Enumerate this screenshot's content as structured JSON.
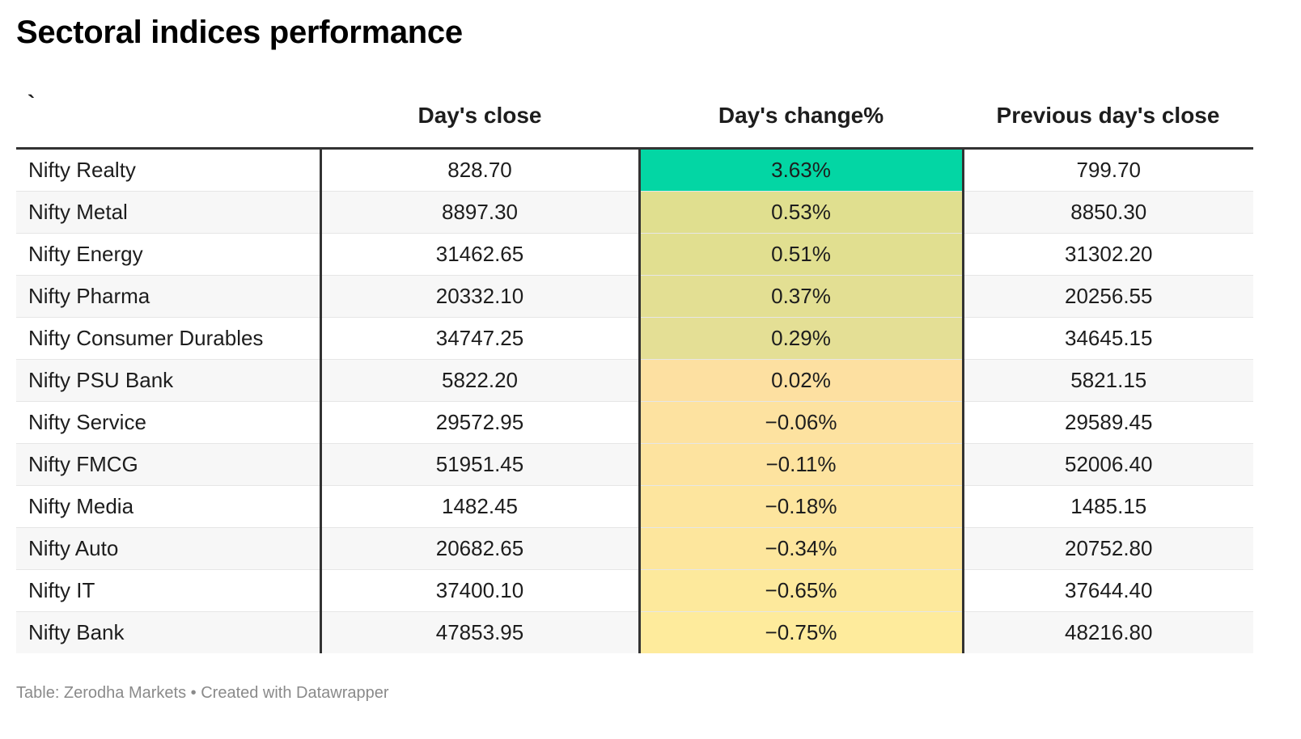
{
  "title": "Sectoral indices performance",
  "footer": "Table: Zerodha Markets • Created with Datawrapper",
  "chart_data": {
    "type": "table",
    "title": "Sectoral indices performance",
    "columns": [
      "`",
      "Day's close",
      "Day's change%",
      "Previous day's close"
    ],
    "rows": [
      {
        "name": "Nifty Realty",
        "close": "828.70",
        "change": "3.63%",
        "change_value": 3.63,
        "prev": "799.70",
        "color": "#03d6a4"
      },
      {
        "name": "Nifty Metal",
        "close": "8897.30",
        "change": "0.53%",
        "change_value": 0.53,
        "prev": "8850.30",
        "color": "#e0df8f"
      },
      {
        "name": "Nifty Energy",
        "close": "31462.65",
        "change": "0.51%",
        "change_value": 0.51,
        "prev": "31302.20",
        "color": "#e1df90"
      },
      {
        "name": "Nifty Pharma",
        "close": "20332.10",
        "change": "0.37%",
        "change_value": 0.37,
        "prev": "20256.55",
        "color": "#e3df93"
      },
      {
        "name": "Nifty Consumer Durables",
        "close": "34747.25",
        "change": "0.29%",
        "change_value": 0.29,
        "prev": "34645.15",
        "color": "#e4df95"
      },
      {
        "name": "Nifty PSU Bank",
        "close": "5822.20",
        "change": "0.02%",
        "change_value": 0.02,
        "prev": "5821.15",
        "color": "#fde0a1"
      },
      {
        "name": "Nifty Service",
        "close": "29572.95",
        "change": "−0.06%",
        "change_value": -0.06,
        "prev": "29589.45",
        "color": "#fde2a0"
      },
      {
        "name": "Nifty FMCG",
        "close": "51951.45",
        "change": "−0.11%",
        "change_value": -0.11,
        "prev": "52006.40",
        "color": "#fde39f"
      },
      {
        "name": "Nifty Media",
        "close": "1482.45",
        "change": "−0.18%",
        "change_value": -0.18,
        "prev": "1485.15",
        "color": "#fde59e"
      },
      {
        "name": "Nifty Auto",
        "close": "20682.65",
        "change": "−0.34%",
        "change_value": -0.34,
        "prev": "20752.80",
        "color": "#fde69d"
      },
      {
        "name": "Nifty IT",
        "close": "37400.10",
        "change": "−0.65%",
        "change_value": -0.65,
        "prev": "37644.40",
        "color": "#fde99c"
      },
      {
        "name": "Nifty Bank",
        "close": "47853.95",
        "change": "−0.75%",
        "change_value": -0.75,
        "prev": "48216.80",
        "color": "#feeb9c"
      }
    ]
  }
}
